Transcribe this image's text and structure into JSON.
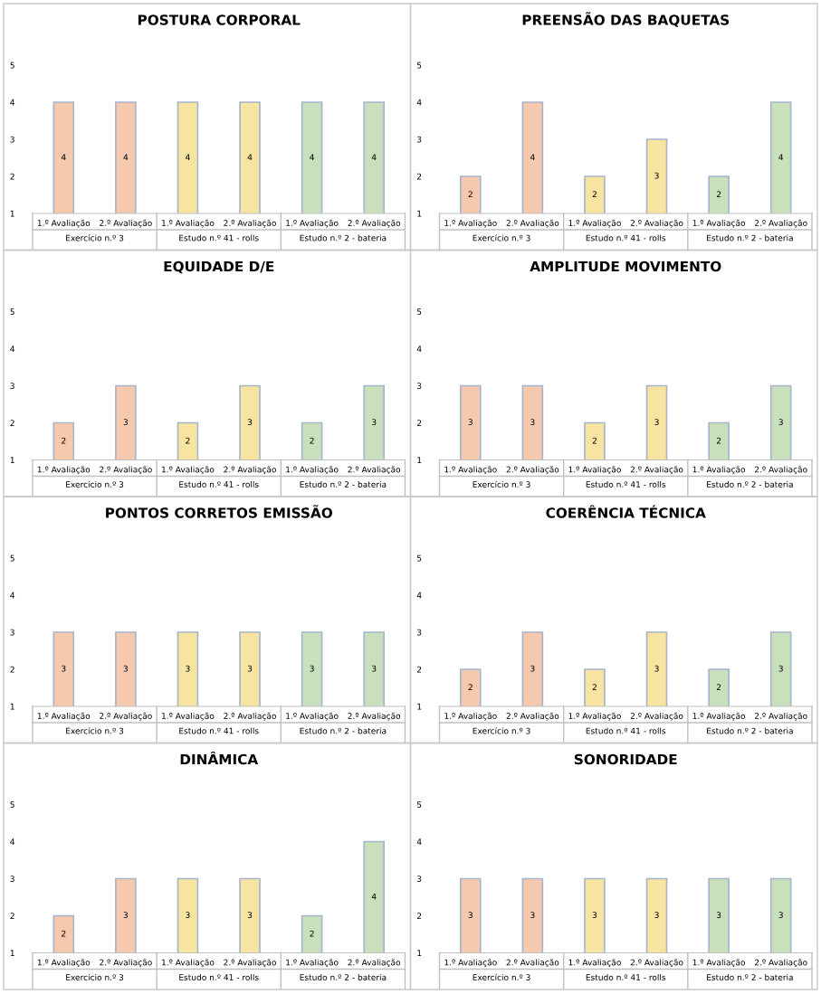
{
  "chart_data": [
    {
      "type": "bar",
      "title": "POSTURA CORPORAL",
      "categories": [
        "1.º Avaliação",
        "2.º Avaliação",
        "1.º Avaliação",
        "2.º Avaliação",
        "1.º Avaliação",
        "2.º Avaliação"
      ],
      "values": [
        4,
        4,
        4,
        4,
        4,
        4
      ],
      "colors": [
        "#f5c9ae",
        "#f5c9ae",
        "#f7e4a0",
        "#f7e4a0",
        "#c8e0bc",
        "#c8e0bc"
      ],
      "ylim": [
        1,
        5
      ],
      "yticks": [
        1,
        2,
        3,
        4,
        5
      ],
      "data_labels": true,
      "annotations": [
        "Exercício n.º 3",
        "Estudo n.º 41 - rolls",
        "Estudo n.º 2 - bateria"
      ]
    },
    {
      "type": "bar",
      "title": "PREENSÃO DAS BAQUETAS",
      "categories": [
        "1.º Avaliação",
        "2.º Avaliação",
        "1.º Avaliação",
        "2.º Avaliação",
        "1.º Avaliação",
        "2.º Avaliação"
      ],
      "values": [
        2,
        4,
        2,
        3,
        2,
        4
      ],
      "colors": [
        "#f5c9ae",
        "#f5c9ae",
        "#f7e4a0",
        "#f7e4a0",
        "#c8e0bc",
        "#c8e0bc"
      ],
      "ylim": [
        1,
        5
      ],
      "yticks": [
        1,
        2,
        3,
        4,
        5
      ],
      "data_labels": true,
      "annotations": [
        "Exercício n.º 3",
        "Estudo n.º 41 - rolls",
        "Estudo n.º 2 - bateria"
      ]
    },
    {
      "type": "bar",
      "title": "EQUIDADE D/E",
      "categories": [
        "1.º Avaliação",
        "2.º Avaliação",
        "1.º Avaliação",
        "2.º Avaliação",
        "1.º Avaliação",
        "2.º Avaliação"
      ],
      "values": [
        2,
        3,
        2,
        3,
        2,
        3
      ],
      "colors": [
        "#f5c9ae",
        "#f5c9ae",
        "#f7e4a0",
        "#f7e4a0",
        "#c8e0bc",
        "#c8e0bc"
      ],
      "ylim": [
        1,
        5
      ],
      "yticks": [
        1,
        2,
        3,
        4,
        5
      ],
      "data_labels": true,
      "annotations": [
        "Exercício n.º 3",
        "Estudo n.º 41 - rolls",
        "Estudo n.º 2 - bateria"
      ]
    },
    {
      "type": "bar",
      "title": "AMPLITUDE MOVIMENTO",
      "categories": [
        "1.º Avaliação",
        "2.º Avaliação",
        "1.º Avaliação",
        "2.º Avaliação",
        "1.º Avaliação",
        "2.º Avaliação"
      ],
      "values": [
        3,
        3,
        2,
        3,
        2,
        3
      ],
      "colors": [
        "#f5c9ae",
        "#f5c9ae",
        "#f7e4a0",
        "#f7e4a0",
        "#c8e0bc",
        "#c8e0bc"
      ],
      "ylim": [
        1,
        5
      ],
      "yticks": [
        1,
        2,
        3,
        4,
        5
      ],
      "data_labels": true,
      "annotations": [
        "Exercício n.º 3",
        "Estudo n.º 41 - rolls",
        "Estudo n.º 2 - bateria"
      ]
    },
    {
      "type": "bar",
      "title": "PONTOS CORRETOS EMISSÃO",
      "categories": [
        "1.º Avaliação",
        "2.º Avaliação",
        "1.º Avaliação",
        "2.º Avaliação",
        "1.º Avaliação",
        "2.º Avaliação"
      ],
      "values": [
        3,
        3,
        3,
        3,
        3,
        3
      ],
      "colors": [
        "#f5c9ae",
        "#f5c9ae",
        "#f7e4a0",
        "#f7e4a0",
        "#c8e0bc",
        "#c8e0bc"
      ],
      "ylim": [
        1,
        5
      ],
      "yticks": [
        1,
        2,
        3,
        4,
        5
      ],
      "data_labels": true,
      "annotations": [
        "Exercício n.º 3",
        "Estudo n.º 41 - rolls",
        "Estudo n.º 2 - bateria"
      ]
    },
    {
      "type": "bar",
      "title": "COERÊNCIA TÉCNICA",
      "categories": [
        "1.º Avaliação",
        "2.º Avaliação",
        "1.º Avaliação",
        "2.º Avaliação",
        "1.º Avaliação",
        "2.º Avaliação"
      ],
      "values": [
        2,
        3,
        2,
        3,
        2,
        3
      ],
      "colors": [
        "#f5c9ae",
        "#f5c9ae",
        "#f7e4a0",
        "#f7e4a0",
        "#c8e0bc",
        "#c8e0bc"
      ],
      "ylim": [
        1,
        5
      ],
      "yticks": [
        1,
        2,
        3,
        4,
        5
      ],
      "data_labels": true,
      "annotations": [
        "Exercício n.º 3",
        "Estudo n.º 41 - rolls",
        "Estudo n.º 2 - bateria"
      ]
    },
    {
      "type": "bar",
      "title": "DINÂMICA",
      "categories": [
        "1.º Avaliação",
        "2.º Avaliação",
        "1.º Avaliação",
        "2.º Avaliação",
        "1.º Avaliação",
        "2.º Avaliação"
      ],
      "values": [
        2,
        3,
        3,
        3,
        2,
        4
      ],
      "colors": [
        "#f5c9ae",
        "#f5c9ae",
        "#f7e4a0",
        "#f7e4a0",
        "#c8e0bc",
        "#c8e0bc"
      ],
      "ylim": [
        1,
        5
      ],
      "yticks": [
        1,
        2,
        3,
        4,
        5
      ],
      "data_labels": true,
      "annotations": [
        "Exercício n.º 3",
        "Estudo n.º 41 - rolls",
        "Estudo n.º 2 - bateria"
      ]
    },
    {
      "type": "bar",
      "title": "SONORIDADE",
      "categories": [
        "1.º Avaliação",
        "2.º Avaliação",
        "1.º Avaliação",
        "2.º Avaliação",
        "1.º Avaliação",
        "2.º Avaliação"
      ],
      "values": [
        3,
        3,
        3,
        3,
        3,
        3
      ],
      "colors": [
        "#f5c9ae",
        "#f5c9ae",
        "#f7e4a0",
        "#f7e4a0",
        "#c8e0bc",
        "#c8e0bc"
      ],
      "ylim": [
        1,
        5
      ],
      "yticks": [
        1,
        2,
        3,
        4,
        5
      ],
      "data_labels": true,
      "annotations": [
        "Exercício n.º 3",
        "Estudo n.º 41 - rolls",
        "Estudo n.º 2 - bateria"
      ]
    }
  ]
}
